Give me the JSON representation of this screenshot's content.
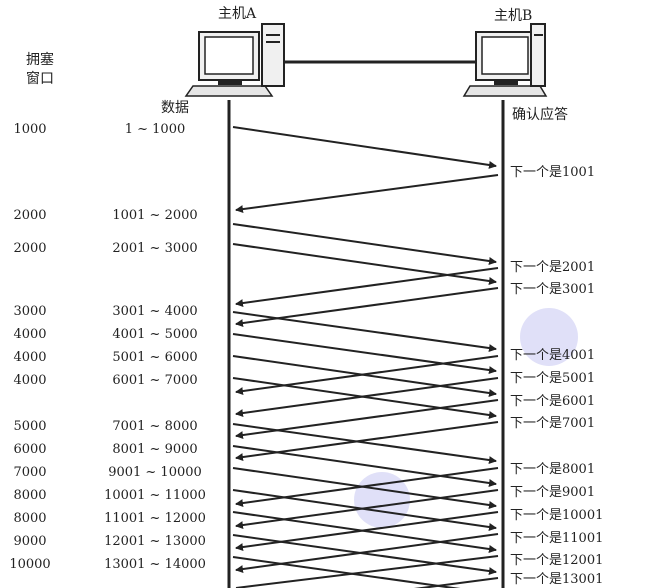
{
  "host_a": "主机A",
  "host_b": "主机B",
  "cwnd_label_1": "拥塞",
  "cwnd_label_2": "窗口",
  "data_label": "数据",
  "ack_label": "确认应答",
  "rows": [
    {
      "cwnd": "1000",
      "data": "1 ~ 1000"
    },
    {
      "cwnd": "2000",
      "data": "1001 ~ 2000"
    },
    {
      "cwnd": "2000",
      "data": "2001 ~ 3000"
    },
    {
      "cwnd": "3000",
      "data": "3001 ~ 4000"
    },
    {
      "cwnd": "4000",
      "data": "4001 ~ 5000"
    },
    {
      "cwnd": "4000",
      "data": "5001 ~ 6000"
    },
    {
      "cwnd": "4000",
      "data": "6001 ~ 7000"
    },
    {
      "cwnd": "5000",
      "data": "7001 ~ 8000"
    },
    {
      "cwnd": "6000",
      "data": "8001 ~ 9000"
    },
    {
      "cwnd": "7000",
      "data": "9001 ~ 10000"
    },
    {
      "cwnd": "8000",
      "data": "10001 ~ 11000"
    },
    {
      "cwnd": "8000",
      "data": "11001 ~ 12000"
    },
    {
      "cwnd": "9000",
      "data": "12001 ~ 13000"
    },
    {
      "cwnd": "10000",
      "data": "13001 ~ 14000"
    }
  ],
  "acks": [
    "下一个是1001",
    "下一个是2001",
    "下一个是3001",
    "下一个是4001",
    "下一个是5001",
    "下一个是6001",
    "下一个是7001",
    "下一个是8001",
    "下一个是9001",
    "下一个是10001",
    "下一个是11001",
    "下一个是12001",
    "下一个是13001"
  ]
}
